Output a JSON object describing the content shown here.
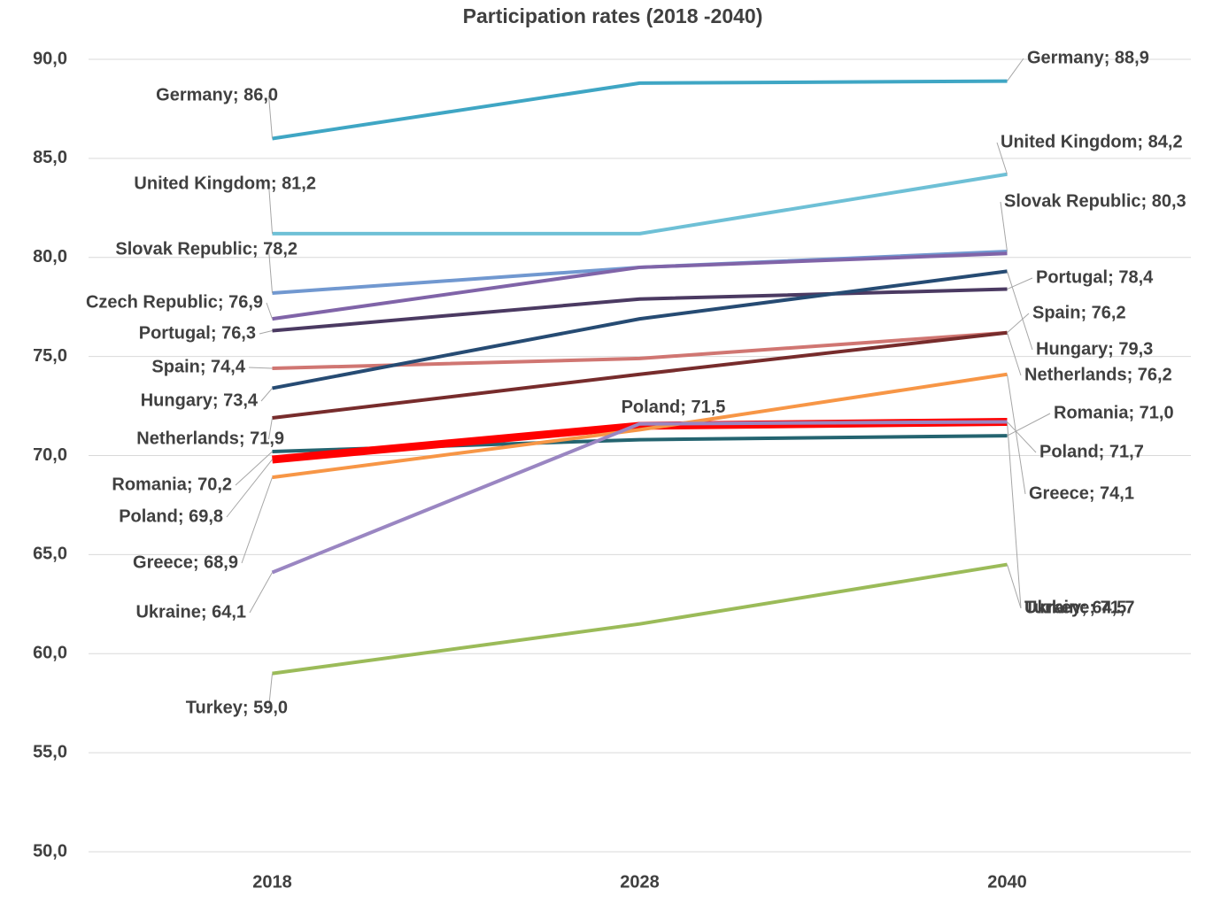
{
  "chart_data": {
    "type": "line",
    "title": "Participation rates (2018 -2040)",
    "categories": [
      "2018",
      "2028",
      "2040"
    ],
    "ylim": [
      50,
      90
    ],
    "yticks": [
      {
        "value": 50,
        "label": "50,0"
      },
      {
        "value": 55,
        "label": "55,0"
      },
      {
        "value": 60,
        "label": "60,0"
      },
      {
        "value": 65,
        "label": "65,0"
      },
      {
        "value": 70,
        "label": "70,0"
      },
      {
        "value": 75,
        "label": "75,0"
      },
      {
        "value": 80,
        "label": "80,0"
      },
      {
        "value": 85,
        "label": "85,0"
      },
      {
        "value": 90,
        "label": "90,0"
      }
    ],
    "grid": true,
    "series": [
      {
        "name": "Germany",
        "color": "#3fa6c4",
        "values": [
          86.0,
          88.8,
          88.9
        ],
        "value_labels": [
          "Germany; 86,0",
          null,
          "Germany; 88,9"
        ]
      },
      {
        "name": "United Kingdom",
        "color": "#6ec0d6",
        "values": [
          81.2,
          81.2,
          84.2
        ],
        "value_labels": [
          "United Kingdom; 81,2",
          null,
          "United Kingdom; 84,2"
        ]
      },
      {
        "name": "Slovak Republic",
        "color": "#7198d0",
        "values": [
          78.2,
          79.5,
          80.3
        ],
        "value_labels": [
          "Slovak Republic; 78,2",
          null,
          "Slovak Republic; 80,3"
        ]
      },
      {
        "name": "Czech Republic",
        "color": "#8064a8",
        "values": [
          76.9,
          79.5,
          80.2
        ],
        "value_labels": [
          "Czech Republic; 76,9",
          null,
          null
        ]
      },
      {
        "name": "Portugal",
        "color": "#4b3a62",
        "values": [
          76.3,
          77.9,
          78.4
        ],
        "value_labels": [
          "Portugal; 76,3",
          null,
          "Portugal; 78,4"
        ]
      },
      {
        "name": "Spain",
        "color": "#d07672",
        "values": [
          74.4,
          74.9,
          76.2
        ],
        "value_labels": [
          "Spain; 74,4",
          null,
          "Spain; 76,2"
        ]
      },
      {
        "name": "Hungary",
        "color": "#264b73",
        "values": [
          73.4,
          76.9,
          79.3
        ],
        "value_labels": [
          "Hungary; 73,4",
          null,
          "Hungary; 79,3"
        ]
      },
      {
        "name": "Netherlands",
        "color": "#772c2c",
        "values": [
          71.9,
          74.1,
          76.2
        ],
        "value_labels": [
          "Netherlands; 71,9",
          null,
          "Netherlands; 76,2"
        ]
      },
      {
        "name": "Romania",
        "color": "#246470",
        "values": [
          70.2,
          70.8,
          71.0
        ],
        "value_labels": [
          "Romania; 70,2",
          null,
          "Romania; 71,0"
        ]
      },
      {
        "name": "Poland",
        "color": "#ff0000",
        "values": [
          69.8,
          71.5,
          71.7
        ],
        "value_labels": [
          "Poland; 69,8",
          "Poland; 71,5",
          "Poland; 71,7"
        ]
      },
      {
        "name": "Greece",
        "color": "#f79646",
        "values": [
          68.9,
          71.3,
          74.1
        ],
        "value_labels": [
          "Greece; 68,9",
          null,
          "Greece; 74,1"
        ]
      },
      {
        "name": "Ukraine",
        "color": "#9a86c2",
        "values": [
          64.1,
          71.6,
          71.7
        ],
        "value_labels": [
          "Ukraine; 64,1",
          null,
          "Ukraine; 71,7"
        ]
      },
      {
        "name": "Turkey",
        "color": "#9bbb59",
        "values": [
          59.0,
          61.5,
          64.5
        ],
        "value_labels": [
          "Turkey; 59,0",
          null,
          "Turkey; 64,5"
        ]
      }
    ]
  }
}
